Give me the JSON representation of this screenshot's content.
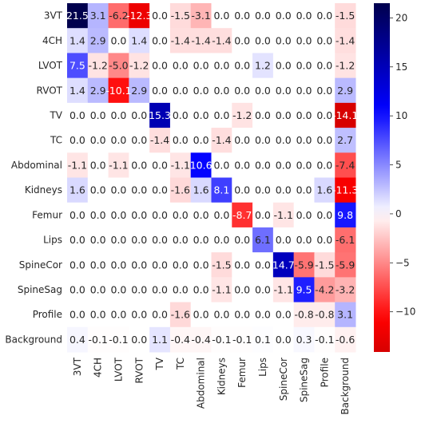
{
  "chart_data": {
    "type": "heatmap",
    "title": "",
    "xlabel": "",
    "ylabel": "",
    "x_labels": [
      "3VT",
      "4CH",
      "LVOT",
      "RVOT",
      "TV",
      "TC",
      "Abdominal",
      "Kidneys",
      "Femur",
      "Lips",
      "SpineCor",
      "SpineSag",
      "Profile",
      "Background"
    ],
    "y_labels": [
      "3VT",
      "4CH",
      "LVOT",
      "RVOT",
      "TV",
      "TC",
      "Abdominal",
      "Kidneys",
      "Femur",
      "Lips",
      "SpineCor",
      "SpineSag",
      "Profile",
      "Background"
    ],
    "values": [
      [
        21.5,
        3.1,
        -6.2,
        -12.3,
        0.0,
        -1.5,
        -3.1,
        0.0,
        0.0,
        0.0,
        0.0,
        0.0,
        0.0,
        -1.5
      ],
      [
        1.4,
        2.9,
        0.0,
        1.4,
        0.0,
        -1.4,
        -1.4,
        -1.4,
        0.0,
        0.0,
        0.0,
        0.0,
        0.0,
        -1.4
      ],
      [
        7.5,
        -1.2,
        -5.0,
        -1.2,
        0.0,
        0.0,
        0.0,
        0.0,
        0.0,
        1.2,
        0.0,
        0.0,
        0.0,
        -1.2
      ],
      [
        1.4,
        2.9,
        -10.1,
        2.9,
        0.0,
        0.0,
        0.0,
        0.0,
        0.0,
        0.0,
        0.0,
        0.0,
        0.0,
        2.9
      ],
      [
        0.0,
        0.0,
        0.0,
        0.0,
        15.3,
        0.0,
        0.0,
        0.0,
        -1.2,
        0.0,
        0.0,
        0.0,
        0.0,
        -14.1
      ],
      [
        0.0,
        0.0,
        0.0,
        0.0,
        -1.4,
        0.0,
        0.0,
        -1.4,
        0.0,
        0.0,
        0.0,
        0.0,
        0.0,
        2.7
      ],
      [
        -1.1,
        0.0,
        -1.1,
        0.0,
        0.0,
        -1.1,
        10.6,
        0.0,
        0.0,
        0.0,
        0.0,
        0.0,
        0.0,
        -7.4
      ],
      [
        1.6,
        0.0,
        0.0,
        0.0,
        0.0,
        -1.6,
        1.6,
        8.1,
        0.0,
        0.0,
        0.0,
        0.0,
        1.6,
        -11.3
      ],
      [
        0.0,
        0.0,
        0.0,
        0.0,
        0.0,
        0.0,
        0.0,
        0.0,
        -8.7,
        0.0,
        -1.1,
        0.0,
        0.0,
        9.8
      ],
      [
        0.0,
        0.0,
        0.0,
        0.0,
        0.0,
        0.0,
        0.0,
        0.0,
        0.0,
        6.1,
        0.0,
        0.0,
        0.0,
        -6.1
      ],
      [
        0.0,
        0.0,
        0.0,
        0.0,
        0.0,
        0.0,
        0.0,
        -1.5,
        0.0,
        0.0,
        14.7,
        -5.9,
        -1.5,
        -5.9
      ],
      [
        0.0,
        0.0,
        0.0,
        0.0,
        0.0,
        0.0,
        0.0,
        -1.1,
        0.0,
        0.0,
        -1.1,
        9.5,
        -4.2,
        -3.2
      ],
      [
        0.0,
        0.0,
        0.0,
        0.0,
        0.0,
        -1.6,
        0.0,
        0.0,
        0.0,
        0.0,
        0.0,
        -0.8,
        -0.8,
        3.1
      ],
      [
        0.4,
        -0.1,
        -0.1,
        0.0,
        1.1,
        -0.4,
        -0.4,
        -0.1,
        -0.1,
        0.1,
        0.0,
        0.3,
        -0.1,
        -0.6
      ]
    ],
    "display_labels": [
      [
        "21.5",
        "3.1",
        "-6.2",
        "-12.3",
        "0.0",
        "-1.5",
        "-3.1",
        "0.0",
        "0.0",
        "0.0",
        "0.0",
        "0.0",
        "0.0",
        "-1.5"
      ],
      [
        "1.4",
        "2.9",
        "0.0",
        "1.4",
        "0.0",
        "-1.4",
        "-1.4",
        "-1.4",
        "0.0",
        "0.0",
        "0.0",
        "0.0",
        "0.0",
        "-1.4"
      ],
      [
        "7.5",
        "-1.2",
        "-5.0",
        "-1.2",
        "0.0",
        "0.0",
        "0.0",
        "0.0",
        "0.0",
        "1.2",
        "0.0",
        "0.0",
        "0.0",
        "-1.2"
      ],
      [
        "1.4",
        "2.9",
        "-10.1",
        "2.9",
        "0.0",
        "0.0",
        "0.0",
        "0.0",
        "0.0",
        "0.0",
        "0.0",
        "0.0",
        "0.0",
        "2.9"
      ],
      [
        "0.0",
        "0.0",
        "0.0",
        "0.0",
        "15.3",
        "0.0",
        "0.0",
        "0.0",
        "-1.2",
        "0.0",
        "0.0",
        "0.0",
        "0.0",
        "-14.1"
      ],
      [
        "0.0",
        "0.0",
        "0.0",
        "0.0",
        "-1.4",
        "0.0",
        "0.0",
        "-1.4",
        "0.0",
        "0.0",
        "0.0",
        "0.0",
        "0.0",
        "2.7"
      ],
      [
        "-1.1",
        "0.0",
        "-1.1",
        "0.0",
        "0.0",
        "-1.1",
        "10.6",
        "0.0",
        "0.0",
        "0.0",
        "0.0",
        "0.0",
        "0.0",
        "-7.4"
      ],
      [
        "1.6",
        "0.0",
        "0.0",
        "0.0",
        "0.0",
        "-1.6",
        "1.6",
        "8.1",
        "0.0",
        "0.0",
        "0.0",
        "0.0",
        "1.6",
        "-11.3"
      ],
      [
        "0.0",
        "0.0",
        "0.0",
        "0.0",
        "0.0",
        "0.0",
        "0.0",
        "0.0",
        "-8.7",
        "0.0",
        "-1.1",
        "0.0",
        "0.0",
        "9.8"
      ],
      [
        "0.0",
        "0.0",
        "0.0",
        "0.0",
        "0.0",
        "0.0",
        "0.0",
        "0.0",
        "0.0",
        "6.1",
        "0.0",
        "0.0",
        "0.0",
        "-6.1"
      ],
      [
        "0.0",
        "0.0",
        "0.0",
        "0.0",
        "0.0",
        "0.0",
        "0.0",
        "-1.5",
        "0.0",
        "0.0",
        "14.7",
        "-5.9",
        "-1.5",
        "-5.9"
      ],
      [
        "0.0",
        "0.0",
        "0.0",
        "0.0",
        "0.0",
        "0.0",
        "0.0",
        "-1.1",
        "0.0",
        "0.0",
        "-1.1",
        "9.5",
        "-4.2",
        "-3.2"
      ],
      [
        "0.0",
        "0.0",
        "0.0",
        "0.0",
        "0.0",
        "-1.6",
        "0.0",
        "0.0",
        "0.0",
        "0.0",
        "0.0",
        "-0.8",
        "-0.8",
        "3.1"
      ],
      [
        "0.4",
        "-0.1",
        "-0.1",
        "0.0",
        "1.1",
        "-0.4",
        "-0.4",
        "-0.1",
        "-0.1",
        "0.1",
        "0.0",
        "0.3",
        "-0.1",
        "-0.6"
      ]
    ],
    "colormap": "seismic_r",
    "vmin": -14.1,
    "vmax": 21.5,
    "center": 0,
    "colorbar_ticks": [
      -10,
      -5,
      0,
      5,
      10,
      15,
      20
    ],
    "colorbar_tick_labels": [
      "−10",
      "−5",
      "0",
      "5",
      "10",
      "15",
      "20"
    ],
    "grid": false,
    "colors": {
      "negative_extreme": "#ff0000",
      "zero": "#ffffff",
      "positive_extreme": "#00004c",
      "text_dark": "#262626",
      "text_light": "#ffffff"
    }
  }
}
